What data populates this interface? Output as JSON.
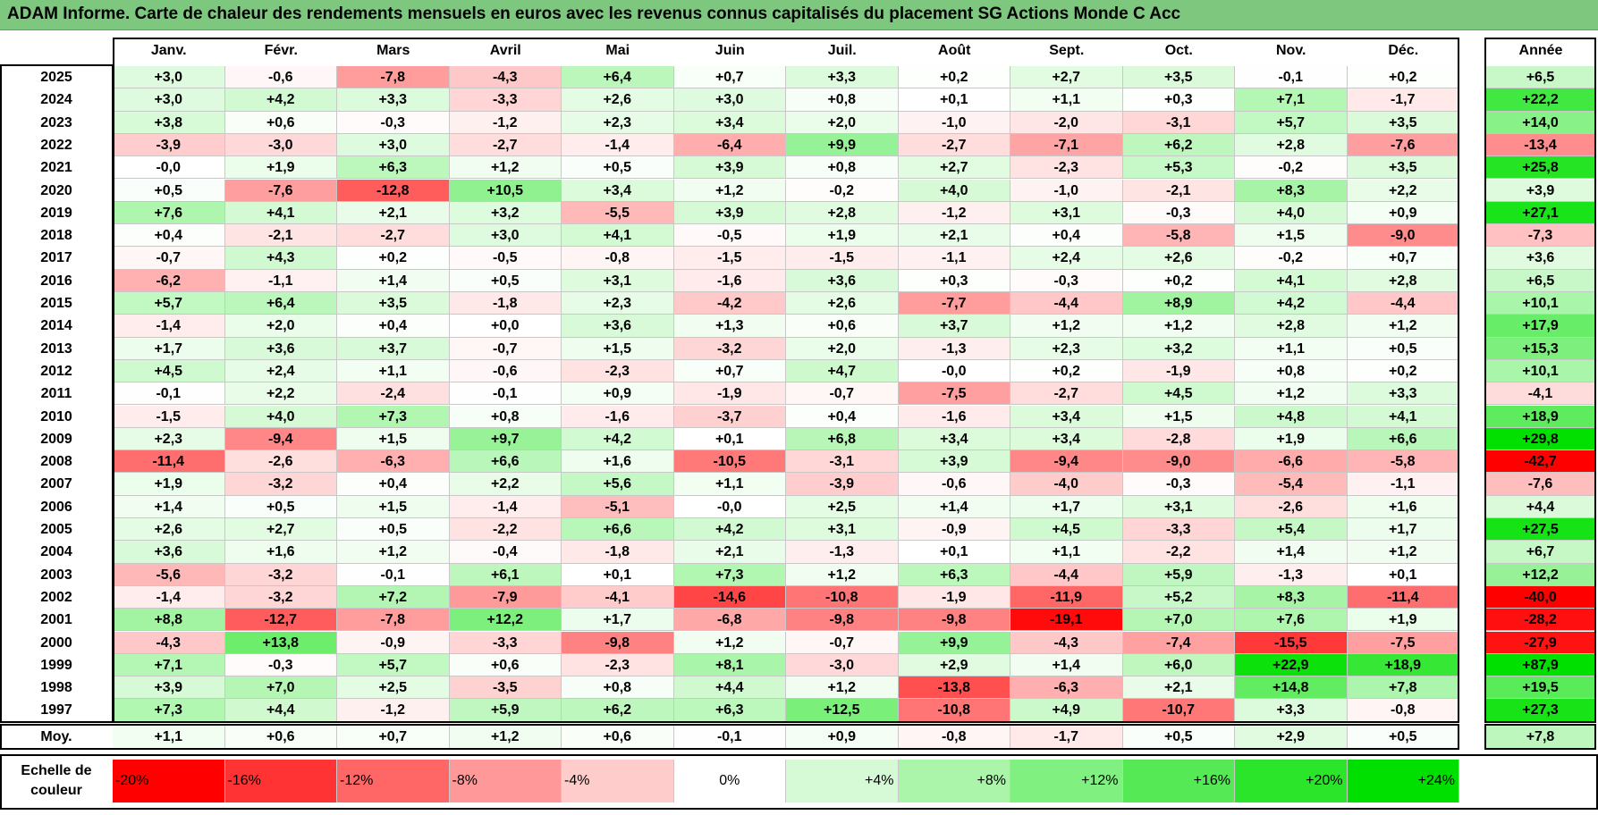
{
  "title": "ADAM Informe. Carte de chaleur des rendements mensuels en euros avec les revenus connus capitalisés du placement SG Actions Monde C Acc",
  "chart_data": {
    "type": "heatmap",
    "title": "ADAM Informe. Carte de chaleur des rendements mensuels en euros avec les revenus connus capitalisés du placement SG Actions Monde C Acc",
    "columns": [
      "Janv.",
      "Févr.",
      "Mars",
      "Avril",
      "Mai",
      "Juin",
      "Juil.",
      "Août",
      "Sept.",
      "Oct.",
      "Nov.",
      "Déc."
    ],
    "annual_header": "Année",
    "average_label": "Moy.",
    "rows": [
      {
        "year": "2025",
        "values": [
          3.0,
          -0.6,
          -7.8,
          -4.3,
          6.4,
          0.7,
          3.3,
          0.2,
          2.7,
          3.5,
          -0.1,
          0.2
        ],
        "annual": 6.5
      },
      {
        "year": "2024",
        "values": [
          3.0,
          4.2,
          3.3,
          -3.3,
          2.6,
          3.0,
          0.8,
          0.1,
          1.1,
          0.3,
          7.1,
          -1.7
        ],
        "annual": 22.2
      },
      {
        "year": "2023",
        "values": [
          3.8,
          0.6,
          -0.3,
          -1.2,
          2.3,
          3.4,
          2.0,
          -1.0,
          -2.0,
          -3.1,
          5.7,
          3.5
        ],
        "annual": 14.0
      },
      {
        "year": "2022",
        "values": [
          -3.9,
          -3.0,
          3.0,
          -2.7,
          -1.4,
          -6.4,
          9.9,
          -2.7,
          -7.1,
          6.2,
          2.8,
          -7.6
        ],
        "annual": -13.4
      },
      {
        "year": "2021",
        "values": [
          -0.0,
          1.9,
          6.3,
          1.2,
          0.5,
          3.9,
          0.8,
          2.7,
          -2.3,
          5.3,
          -0.2,
          3.5
        ],
        "annual": 25.8
      },
      {
        "year": "2020",
        "values": [
          0.5,
          -7.6,
          -12.8,
          10.5,
          3.4,
          1.2,
          -0.2,
          4.0,
          -1.0,
          -2.1,
          8.3,
          2.2
        ],
        "annual": 3.9
      },
      {
        "year": "2019",
        "values": [
          7.6,
          4.1,
          2.1,
          3.2,
          -5.5,
          3.9,
          2.8,
          -1.2,
          3.1,
          -0.3,
          4.0,
          0.9
        ],
        "annual": 27.1
      },
      {
        "year": "2018",
        "values": [
          0.4,
          -2.1,
          -2.7,
          3.0,
          4.1,
          -0.5,
          1.9,
          2.1,
          0.4,
          -5.8,
          1.5,
          -9.0
        ],
        "annual": -7.3
      },
      {
        "year": "2017",
        "values": [
          -0.7,
          4.3,
          0.2,
          -0.5,
          -0.8,
          -1.5,
          -1.5,
          -1.1,
          2.4,
          2.6,
          -0.2,
          0.7
        ],
        "annual": 3.6
      },
      {
        "year": "2016",
        "values": [
          -6.2,
          -1.1,
          1.4,
          0.5,
          3.1,
          -1.6,
          3.6,
          0.3,
          -0.3,
          0.2,
          4.1,
          2.8
        ],
        "annual": 6.5
      },
      {
        "year": "2015",
        "values": [
          5.7,
          6.4,
          3.5,
          -1.8,
          2.3,
          -4.2,
          2.6,
          -7.7,
          -4.4,
          8.9,
          4.2,
          -4.4
        ],
        "annual": 10.1
      },
      {
        "year": "2014",
        "values": [
          -1.4,
          2.0,
          0.4,
          0.0,
          3.6,
          1.3,
          0.6,
          3.7,
          1.2,
          1.2,
          2.8,
          1.2
        ],
        "annual": 17.9
      },
      {
        "year": "2013",
        "values": [
          1.7,
          3.6,
          3.7,
          -0.7,
          1.5,
          -3.2,
          2.0,
          -1.3,
          2.3,
          3.2,
          1.1,
          0.5
        ],
        "annual": 15.3
      },
      {
        "year": "2012",
        "values": [
          4.5,
          2.4,
          1.1,
          -0.6,
          -2.3,
          0.7,
          4.7,
          -0.0,
          0.2,
          -1.9,
          0.8,
          0.2
        ],
        "annual": 10.1
      },
      {
        "year": "2011",
        "values": [
          -0.1,
          2.2,
          -2.4,
          -0.1,
          0.9,
          -1.9,
          -0.7,
          -7.5,
          -2.7,
          4.5,
          1.2,
          3.3
        ],
        "annual": -4.1
      },
      {
        "year": "2010",
        "values": [
          -1.5,
          4.0,
          7.3,
          0.8,
          -1.6,
          -3.7,
          0.4,
          -1.6,
          3.4,
          1.5,
          4.8,
          4.1
        ],
        "annual": 18.9
      },
      {
        "year": "2009",
        "values": [
          2.3,
          -9.4,
          1.5,
          9.7,
          4.2,
          0.1,
          6.8,
          3.4,
          3.4,
          -2.8,
          1.9,
          6.6
        ],
        "annual": 29.8
      },
      {
        "year": "2008",
        "values": [
          -11.4,
          -2.6,
          -6.3,
          6.6,
          1.6,
          -10.5,
          -3.1,
          3.9,
          -9.4,
          -9.0,
          -6.6,
          -5.8
        ],
        "annual": -42.7
      },
      {
        "year": "2007",
        "values": [
          1.9,
          -3.2,
          0.4,
          2.2,
          5.6,
          1.1,
          -3.9,
          -0.6,
          -4.0,
          -0.3,
          -5.4,
          -1.1
        ],
        "annual": -7.6
      },
      {
        "year": "2006",
        "values": [
          1.4,
          0.5,
          1.5,
          -1.4,
          -5.1,
          -0.0,
          2.5,
          1.4,
          1.7,
          3.1,
          -2.6,
          1.6
        ],
        "annual": 4.4
      },
      {
        "year": "2005",
        "values": [
          2.6,
          2.7,
          0.5,
          -2.2,
          6.6,
          4.2,
          3.1,
          -0.9,
          4.5,
          -3.3,
          5.4,
          1.7
        ],
        "annual": 27.5
      },
      {
        "year": "2004",
        "values": [
          3.6,
          1.6,
          1.2,
          -0.4,
          -1.8,
          2.1,
          -1.3,
          0.1,
          1.1,
          -2.2,
          1.4,
          1.2
        ],
        "annual": 6.7
      },
      {
        "year": "2003",
        "values": [
          -5.6,
          -3.2,
          -0.1,
          6.1,
          0.1,
          7.3,
          1.2,
          6.3,
          -4.4,
          5.9,
          -1.3,
          0.1
        ],
        "annual": 12.2
      },
      {
        "year": "2002",
        "values": [
          -1.4,
          -3.2,
          7.2,
          -7.9,
          -4.1,
          -14.6,
          -10.8,
          -1.9,
          -11.9,
          5.2,
          8.3,
          -11.4
        ],
        "annual": -40.0
      },
      {
        "year": "2001",
        "values": [
          8.8,
          -12.7,
          -7.8,
          12.2,
          1.7,
          -6.8,
          -9.8,
          -9.8,
          -19.1,
          7.0,
          7.6,
          1.9
        ],
        "annual": -28.2
      },
      {
        "year": "2000",
        "values": [
          -4.3,
          13.8,
          -0.9,
          -3.3,
          -9.8,
          1.2,
          -0.7,
          9.9,
          -4.3,
          -7.4,
          -15.5,
          -7.5
        ],
        "annual": -27.9
      },
      {
        "year": "1999",
        "values": [
          7.1,
          -0.3,
          5.7,
          0.6,
          -2.3,
          8.1,
          -3.0,
          2.9,
          1.4,
          6.0,
          22.9,
          18.9
        ],
        "annual": 87.9
      },
      {
        "year": "1998",
        "values": [
          3.9,
          7.0,
          2.5,
          -3.5,
          0.8,
          4.4,
          1.2,
          -13.8,
          -6.3,
          2.1,
          14.8,
          7.8
        ],
        "annual": 19.5
      },
      {
        "year": "1997",
        "values": [
          7.3,
          4.4,
          -1.2,
          5.9,
          6.2,
          6.3,
          12.5,
          -10.8,
          4.9,
          -10.7,
          3.3,
          -0.8
        ],
        "annual": 27.3
      }
    ],
    "average": {
      "values": [
        1.1,
        0.6,
        0.7,
        1.2,
        0.6,
        -0.1,
        0.9,
        -0.8,
        -1.7,
        0.5,
        2.9,
        0.5
      ],
      "annual": 7.8
    },
    "scale": {
      "label": "Echelle de couleur",
      "stops": [
        "-20%",
        "-16%",
        "-12%",
        "-8%",
        "-4%",
        "0%",
        "+4%",
        "+8%",
        "+12%",
        "+16%",
        "+20%",
        "+24%"
      ],
      "stop_values": [
        -20,
        -16,
        -12,
        -8,
        -4,
        0,
        4,
        8,
        12,
        16,
        20,
        24
      ]
    },
    "colors": {
      "negative": "#ff0000",
      "neutral": "#ffffff",
      "positive": "#00e000"
    }
  }
}
